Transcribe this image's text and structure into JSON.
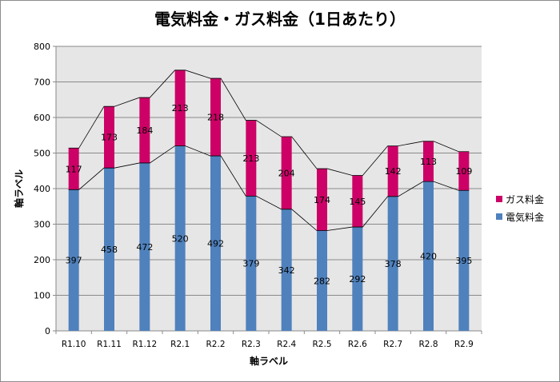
{
  "chart_data": {
    "type": "bar",
    "stacked": true,
    "title": "電気料金・ガス料金（1日あたり）",
    "xlabel": "軸ラベル",
    "ylabel": "軸ラベル",
    "ylim": [
      0,
      800
    ],
    "yticks": [
      "0",
      "100",
      "200",
      "300",
      "400",
      "500",
      "600",
      "700",
      "800"
    ],
    "categories": [
      "R1.10",
      "R1.11",
      "R1.12",
      "R2.1",
      "R2.2",
      "R2.3",
      "R2.4",
      "R2.5",
      "R2.6",
      "R2.7",
      "R2.8",
      "R2.9"
    ],
    "series": [
      {
        "name": "電気料金",
        "color": "#4f81bd",
        "values": [
          397,
          458,
          472,
          520,
          492,
          379,
          342,
          282,
          292,
          378,
          420,
          395
        ]
      },
      {
        "name": "ガス料金",
        "color": "#cc0066",
        "values": [
          117,
          173,
          184,
          213,
          218,
          213,
          204,
          174,
          145,
          142,
          113,
          109
        ]
      }
    ],
    "legend_position": "right",
    "series_lines": true,
    "grid": true
  }
}
